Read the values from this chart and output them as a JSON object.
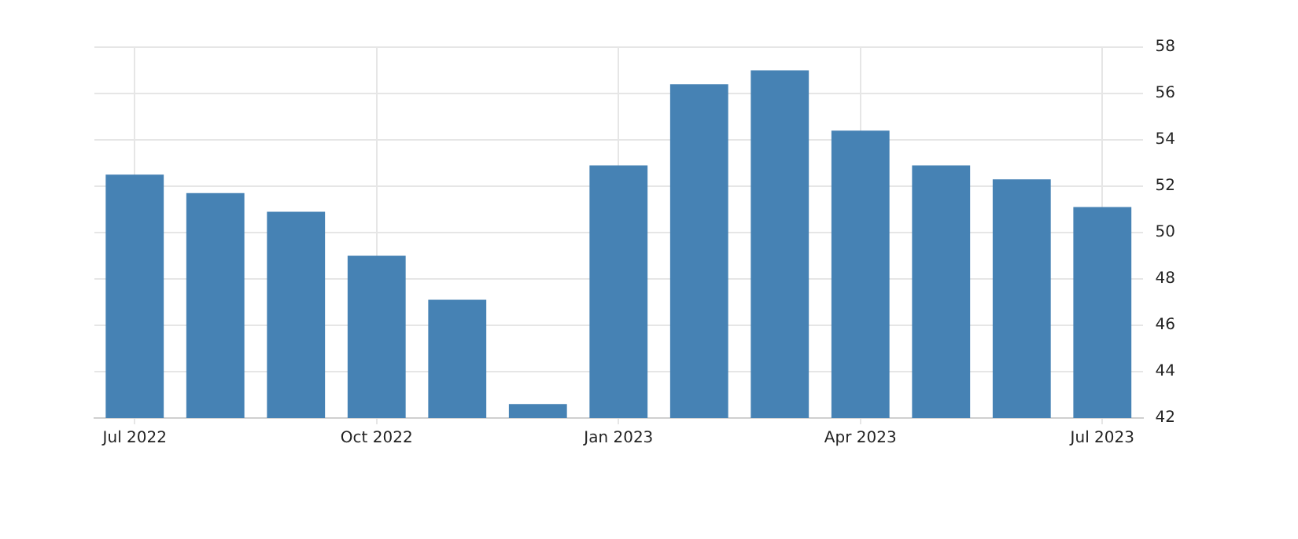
{
  "chart_data": {
    "type": "bar",
    "categories": [
      "Jul 2022",
      null,
      null,
      "Oct 2022",
      null,
      null,
      "Jan 2023",
      null,
      null,
      "Apr 2023",
      null,
      null,
      "Jul 2023"
    ],
    "values": [
      52.5,
      51.7,
      50.9,
      49.0,
      47.1,
      42.6,
      52.9,
      56.4,
      57.0,
      54.4,
      52.9,
      52.3,
      51.1
    ],
    "color": "#4682b4",
    "ylim": [
      42,
      58
    ],
    "yticks": [
      42,
      44,
      46,
      48,
      50,
      52,
      54,
      56,
      58
    ],
    "grid": true,
    "legend": false
  }
}
